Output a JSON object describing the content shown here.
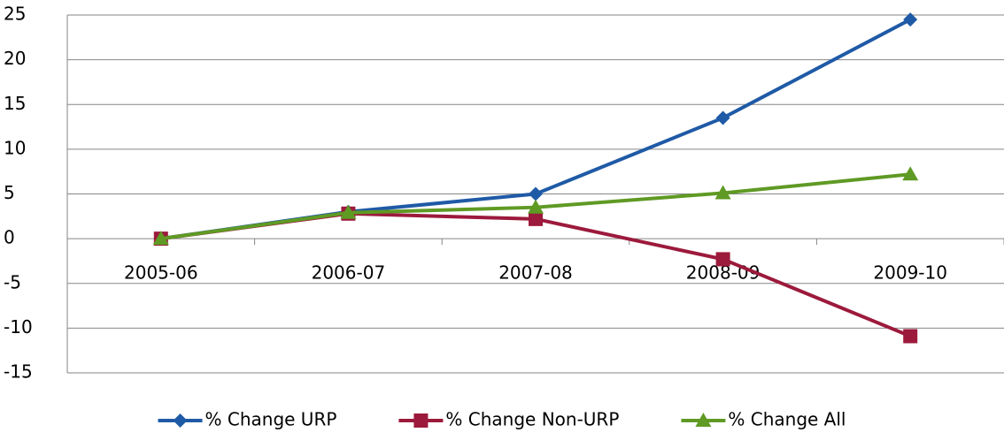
{
  "chart_data": {
    "type": "line",
    "categories": [
      "2005-06",
      "2006-07",
      "2007-08",
      "2008-09",
      "2009-10"
    ],
    "series": [
      {
        "name": "% Change URP",
        "color": "#1f5aa6",
        "marker": "diamond",
        "values": [
          0,
          3,
          5,
          13.5,
          24.5
        ]
      },
      {
        "name": "% Change Non-URP",
        "color": "#9c1a3c",
        "marker": "square",
        "values": [
          0,
          2.8,
          2.2,
          -2.3,
          -10.9
        ]
      },
      {
        "name": "% Change All",
        "color": "#5f9a24",
        "marker": "triangle",
        "values": [
          0,
          2.9,
          3.5,
          5.1,
          7.2
        ]
      }
    ],
    "ylim": [
      -15,
      25
    ],
    "yticks": [
      -15,
      -10,
      -5,
      0,
      5,
      10,
      15,
      20,
      25
    ],
    "grid": true,
    "legend": "bottom"
  }
}
